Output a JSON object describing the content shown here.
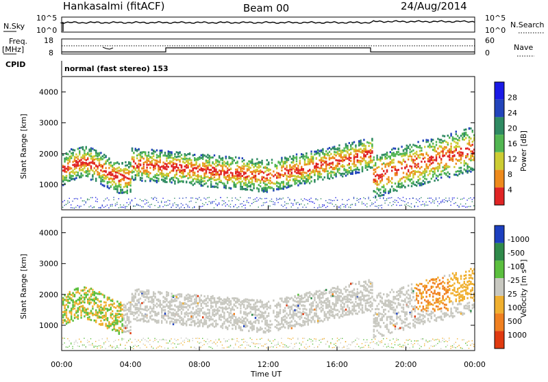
{
  "header": {
    "station": "Hankasalmi (fitACF)",
    "beam": "Beam 00",
    "date": "24/Aug/2014"
  },
  "noise_panel": {
    "left_label": "N.Sky",
    "right_label": "N.Search",
    "left_ticks": [
      "10^5",
      "10^0"
    ],
    "right_ticks": [
      "10^5",
      "10^0"
    ]
  },
  "freq_panel": {
    "left_label_1": "Freq.",
    "left_label_2": "[MHz]",
    "right_label": "Nave",
    "left_ticks": [
      "18",
      "8"
    ],
    "right_ticks": [
      "60",
      "0"
    ]
  },
  "cpid": {
    "label": "CPID",
    "value": "normal (fast stereo) 153"
  },
  "chart_data": [
    {
      "type": "heatmap",
      "name": "power",
      "ylabel": "Slant Range [km]",
      "ylim": [
        180,
        4500
      ],
      "y_ticks": [
        "1000",
        "2000",
        "3000",
        "4000"
      ],
      "y_tick_values": [
        1000,
        2000,
        3000,
        4000
      ],
      "colorbar": {
        "label": "Power [dB]",
        "ticks": [
          "4",
          "8",
          "12",
          "16",
          "20",
          "24",
          "28"
        ],
        "colors": [
          "#1a1ae6",
          "#2244bb",
          "#2f8a62",
          "#52b652",
          "#cccc33",
          "#ee8a1c",
          "#e02424"
        ]
      }
    },
    {
      "type": "heatmap",
      "name": "velocity",
      "ylabel": "Slant Range [km]",
      "ylim": [
        180,
        4500
      ],
      "y_ticks": [
        "1000",
        "2000",
        "3000",
        "4000"
      ],
      "y_tick_values": [
        1000,
        2000,
        3000,
        4000
      ],
      "colorbar": {
        "label": "Velocity [m s⁻¹]",
        "ticks": [
          "1000",
          "500",
          "100",
          "25",
          "-25",
          "-100",
          "-500",
          "-1000"
        ],
        "colors": [
          "#1c3fbf",
          "#2f8a4a",
          "#5bbf3e",
          "#c8c8c0",
          "#f0b030",
          "#f08020",
          "#e03a10"
        ]
      }
    }
  ],
  "x_axis": {
    "label": "Time UT",
    "ticks": [
      "00:00",
      "04:00",
      "08:00",
      "12:00",
      "16:00",
      "20:00",
      "00:00"
    ],
    "tick_hours": [
      0,
      4,
      8,
      12,
      16,
      20,
      24
    ]
  }
}
